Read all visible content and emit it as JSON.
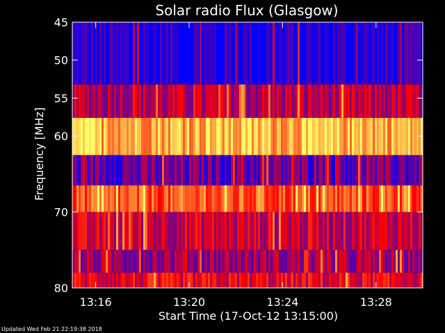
{
  "chart_data": {
    "type": "heatmap",
    "title": "Solar radio Flux (Glasgow)",
    "xlabel": "Start Time (17-Oct-12 13:15:00)",
    "ylabel": "Frequency [MHz]",
    "xlim": [
      "13:15:00",
      "13:30:00"
    ],
    "ylim": [
      45,
      80
    ],
    "y_inverted": true,
    "x_ticks": [
      "13:16",
      "13:20",
      "13:24",
      "13:28"
    ],
    "y_ticks": [
      45,
      50,
      55,
      60,
      70,
      80
    ],
    "colormap": [
      "#0000ff",
      "#ff0000",
      "#ffff66"
    ],
    "bands": [
      {
        "from": 45.0,
        "to": 53.2,
        "level": 0.05
      },
      {
        "from": 53.2,
        "to": 57.6,
        "level": 0.35
      },
      {
        "from": 57.6,
        "to": 62.5,
        "level": 0.85
      },
      {
        "from": 62.5,
        "to": 66.5,
        "level": 0.2
      },
      {
        "from": 66.5,
        "to": 70.0,
        "level": 0.65
      },
      {
        "from": 70.0,
        "to": 75.0,
        "level": 0.4
      },
      {
        "from": 75.0,
        "to": 78.0,
        "level": 0.3
      },
      {
        "from": 78.0,
        "to": 80.0,
        "level": 0.45
      }
    ]
  },
  "footer": {
    "updated": "Updated Wed Feb 21 22:19:38 2018"
  }
}
